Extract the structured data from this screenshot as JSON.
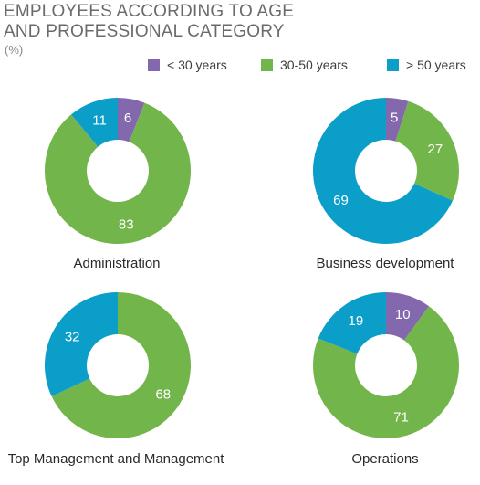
{
  "title": "EMPLOYEES ACCORDING TO AGE\nAND PROFESSIONAL CATEGORY",
  "unit": "(%)",
  "colors": {
    "under30": "#8468ad",
    "mid": "#72b54a",
    "over50": "#0a9ec8"
  },
  "chart_data": {
    "type": "pie",
    "legend_position": "top-right",
    "series_names": [
      "< 30 years",
      "30-50 years",
      "> 50 years"
    ],
    "charts": [
      {
        "category": "Administration",
        "values": [
          6,
          83,
          11
        ]
      },
      {
        "category": "Business development",
        "values": [
          5,
          27,
          69
        ]
      },
      {
        "category": "Top Management and Management",
        "values": [
          0,
          68,
          32
        ]
      },
      {
        "category": "Operations",
        "values": [
          10,
          71,
          19
        ]
      }
    ]
  }
}
